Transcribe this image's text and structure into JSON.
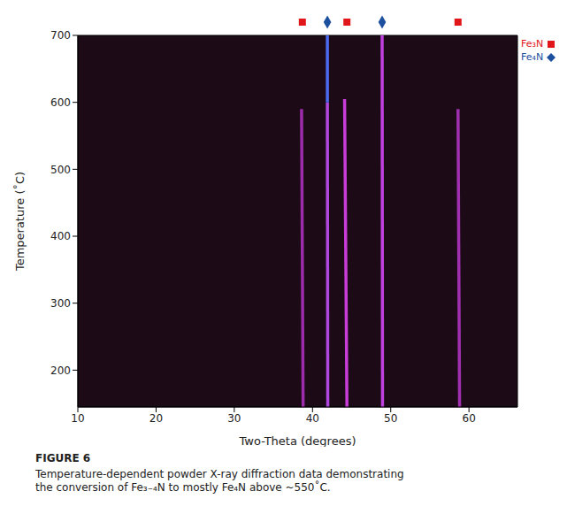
{
  "chart_data": {
    "type": "heatmap",
    "x_label": "Two-Theta (degrees)",
    "y_label": "Temperature (˚C)",
    "xlim": [
      10,
      66.2
    ],
    "xticks": [
      10,
      20,
      30,
      40,
      50,
      60
    ],
    "ylim": [
      145,
      700
    ],
    "yticks": [
      200,
      300,
      400,
      500,
      600,
      700
    ],
    "grid": false,
    "color": "#1c0a17",
    "legend": "right",
    "traces": [
      {
        "x": [
          38.8,
          38.6
        ],
        "y": [
          145,
          590
        ],
        "color": "#9c2cab"
      },
      {
        "x": [
          41.95,
          41.9
        ],
        "y": [
          145,
          600
        ],
        "color": "#b048e0"
      },
      {
        "x": [
          41.9,
          41.9
        ],
        "y": [
          600,
          700
        ],
        "color": "#4c6af0"
      },
      {
        "x": [
          44.4,
          44.1
        ],
        "y": [
          145,
          605
        ],
        "color": "#c83cd8"
      },
      {
        "x": [
          48.95,
          48.9
        ],
        "y": [
          145,
          700
        ],
        "color": "#c040e0"
      },
      {
        "x": [
          58.8,
          58.6
        ],
        "y": [
          145,
          590
        ],
        "color": "#a030b0"
      }
    ],
    "series": [
      {
        "name": "Fe₃N",
        "color": "#e0161b",
        "marker": "square",
        "x": [
          38.7,
          44.4,
          58.6
        ]
      },
      {
        "name": "Fe₄N",
        "color": "#1d4f9f",
        "marker": "diamond",
        "x": [
          41.9,
          48.9
        ]
      }
    ]
  },
  "figure": {
    "label": "FIGURE 6",
    "caption": "Temperature-dependent powder X-ray diffraction data demonstrating the conversion of Fe₃₋₄N to mostly Fe₄N above ~550˚C."
  }
}
